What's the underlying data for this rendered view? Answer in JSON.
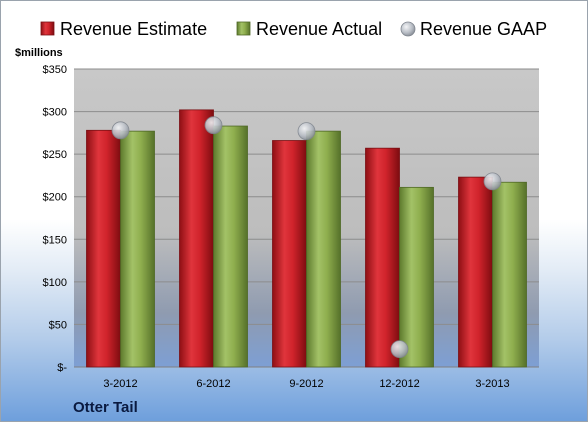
{
  "chart_data": {
    "type": "bar",
    "company": "Otter Tail",
    "ylabel": "$millions",
    "categories": [
      "3-2012",
      "6-2012",
      "9-2012",
      "12-2012",
      "3-2013"
    ],
    "ylim": [
      0,
      350
    ],
    "yticks": [
      0,
      50,
      100,
      150,
      200,
      250,
      300,
      350
    ],
    "ytick_labels": [
      "$-",
      "$50",
      "$100",
      "$150",
      "$200",
      "$250",
      "$300",
      "$350"
    ],
    "grid": true,
    "legend_position": "top",
    "series": [
      {
        "name": "Revenue Estimate",
        "kind": "bar",
        "color": "#d0232b",
        "values": [
          278,
          302,
          266,
          257,
          223
        ]
      },
      {
        "name": "Revenue Actual",
        "kind": "bar",
        "color": "#8fae4e",
        "values": [
          277,
          283,
          277,
          211,
          217
        ]
      },
      {
        "name": "Revenue GAAP",
        "kind": "marker",
        "color": "#b9bec6",
        "values": [
          278,
          284,
          277,
          21,
          218
        ]
      }
    ]
  }
}
